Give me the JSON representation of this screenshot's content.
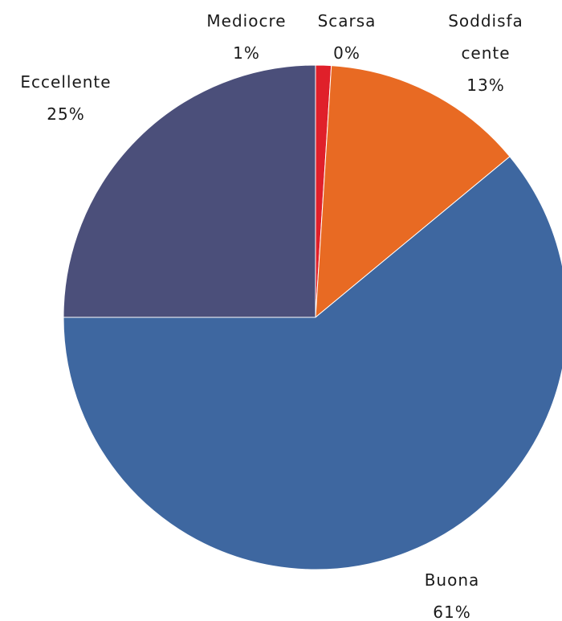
{
  "chart_data": {
    "type": "pie",
    "categories": [
      "Scarsa",
      "Mediocre",
      "Soddisfacente",
      "Buona",
      "Eccellente"
    ],
    "values": [
      0,
      1,
      13,
      61,
      25
    ],
    "value_labels": [
      "0%",
      "1%",
      "13%",
      "61%",
      "25%"
    ],
    "colors": [
      "#5b7fb8",
      "#e0202a",
      "#e86a23",
      "#3e67a0",
      "#4b4f7a"
    ]
  }
}
